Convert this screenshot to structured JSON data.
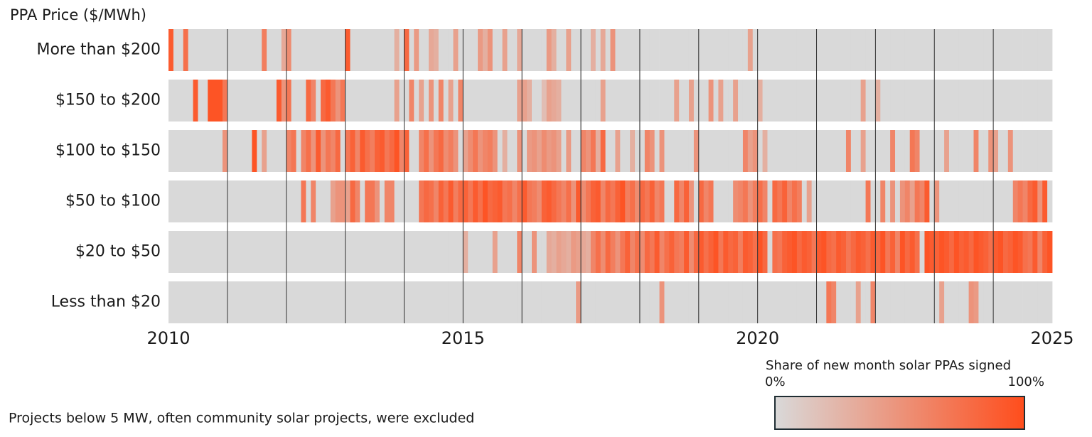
{
  "chart_data": {
    "type": "heatmap",
    "y_axis_title": "PPA Price ($/MWh)",
    "categories": [
      "More than $200",
      "$150 to $200",
      "$100 to $150",
      "$50 to $100",
      "$20 to $50",
      "Less than $20"
    ],
    "xlim": [
      2010,
      2025
    ],
    "xticks": [
      2010,
      2015,
      2020,
      2025
    ],
    "xgrid": [
      2011,
      2012,
      2013,
      2014,
      2015,
      2016,
      2017,
      2018,
      2019,
      2020,
      2021,
      2022,
      2023,
      2024
    ],
    "values": [
      [
        90,
        0,
        0,
        75,
        0,
        0,
        0,
        0,
        0,
        0,
        0,
        0,
        0,
        0,
        0,
        0,
        0,
        0,
        0,
        65,
        0,
        0,
        0,
        35,
        55,
        0,
        0,
        0,
        0,
        0,
        0,
        0,
        0,
        0,
        0,
        0,
        90,
        0,
        0,
        0,
        0,
        0,
        0,
        0,
        0,
        0,
        30,
        0,
        80,
        0,
        45,
        0,
        0,
        35,
        30,
        0,
        0,
        0,
        40,
        0,
        0,
        0,
        0,
        45,
        30,
        50,
        0,
        0,
        40,
        0,
        0,
        35,
        0,
        0,
        0,
        0,
        0,
        45,
        30,
        0,
        0,
        40,
        0,
        0,
        0,
        0,
        30,
        0,
        35,
        0,
        50,
        0,
        0,
        0,
        0,
        0,
        0,
        0,
        0,
        0,
        0,
        0,
        0,
        0,
        0,
        0,
        0,
        0,
        0,
        0,
        0,
        0,
        0,
        0,
        0,
        0,
        0,
        0,
        40,
        0,
        0,
        0,
        0,
        0,
        0,
        0,
        0,
        0,
        0,
        0,
        0,
        0,
        0,
        0,
        0,
        0,
        0,
        0,
        0,
        0,
        0,
        0,
        0,
        0,
        0,
        0,
        0,
        0,
        0,
        0,
        0,
        0,
        0,
        0,
        0,
        0,
        0,
        0,
        0,
        0,
        0,
        0,
        0,
        0,
        0,
        0,
        0,
        0,
        0,
        0,
        0,
        0,
        0,
        0,
        0,
        0,
        0,
        0,
        0,
        0
      ],
      [
        0,
        0,
        0,
        0,
        0,
        90,
        0,
        0,
        95,
        95,
        95,
        70,
        0,
        0,
        0,
        0,
        0,
        0,
        0,
        0,
        0,
        0,
        90,
        50,
        70,
        0,
        0,
        0,
        80,
        60,
        0,
        80,
        90,
        70,
        50,
        70,
        0,
        0,
        0,
        0,
        0,
        0,
        0,
        0,
        0,
        0,
        40,
        0,
        0,
        60,
        0,
        40,
        0,
        50,
        0,
        60,
        0,
        40,
        0,
        60,
        0,
        0,
        0,
        0,
        0,
        0,
        0,
        0,
        0,
        0,
        0,
        40,
        40,
        30,
        0,
        0,
        20,
        40,
        35,
        30,
        0,
        0,
        0,
        0,
        0,
        0,
        0,
        0,
        40,
        0,
        0,
        0,
        0,
        0,
        0,
        0,
        0,
        0,
        0,
        0,
        0,
        0,
        0,
        40,
        0,
        0,
        40,
        0,
        0,
        0,
        50,
        0,
        40,
        0,
        0,
        40,
        0,
        0,
        0,
        0,
        30,
        0,
        0,
        0,
        0,
        0,
        0,
        0,
        0,
        0,
        0,
        0,
        0,
        0,
        0,
        0,
        0,
        0,
        0,
        0,
        0,
        40,
        0,
        0,
        30,
        0,
        0,
        0,
        0,
        0,
        0,
        0,
        0,
        0,
        0,
        0,
        0,
        0,
        0,
        0,
        0,
        0,
        0,
        0,
        0,
        0,
        0,
        0,
        0,
        0,
        0,
        0,
        0,
        0,
        0,
        0,
        0,
        0,
        0,
        0
      ],
      [
        0,
        0,
        0,
        0,
        0,
        0,
        0,
        0,
        0,
        0,
        0,
        50,
        0,
        0,
        0,
        0,
        0,
        95,
        0,
        40,
        0,
        0,
        0,
        0,
        60,
        70,
        0,
        60,
        75,
        50,
        90,
        50,
        70,
        60,
        80,
        0,
        70,
        85,
        60,
        90,
        75,
        65,
        85,
        90,
        70,
        80,
        95,
        60,
        85,
        0,
        0,
        60,
        75,
        50,
        70,
        80,
        55,
        65,
        50,
        0,
        40,
        55,
        70,
        50,
        60,
        65,
        50,
        0,
        30,
        0,
        0,
        50,
        0,
        45,
        50,
        40,
        55,
        45,
        50,
        40,
        0,
        45,
        0,
        0,
        60,
        50,
        70,
        30,
        80,
        0,
        0,
        40,
        0,
        0,
        30,
        0,
        0,
        60,
        50,
        0,
        50,
        0,
        0,
        0,
        0,
        0,
        0,
        50,
        0,
        0,
        0,
        0,
        0,
        0,
        0,
        0,
        0,
        60,
        40,
        50,
        0,
        30,
        0,
        0,
        0,
        0,
        0,
        0,
        0,
        0,
        0,
        0,
        0,
        0,
        0,
        0,
        0,
        0,
        60,
        0,
        0,
        40,
        0,
        0,
        0,
        0,
        0,
        60,
        0,
        0,
        0,
        70,
        60,
        0,
        0,
        0,
        0,
        0,
        40,
        0,
        0,
        0,
        0,
        0,
        60,
        0,
        0,
        50,
        40,
        0,
        0,
        50,
        0,
        0,
        0,
        0,
        0,
        0,
        0,
        0
      ],
      [
        0,
        0,
        0,
        0,
        0,
        0,
        0,
        0,
        0,
        0,
        0,
        0,
        0,
        0,
        0,
        0,
        0,
        0,
        0,
        0,
        0,
        0,
        0,
        0,
        0,
        0,
        0,
        70,
        0,
        60,
        0,
        0,
        0,
        40,
        50,
        50,
        40,
        80,
        60,
        0,
        70,
        70,
        50,
        0,
        60,
        60,
        0,
        0,
        0,
        0,
        0,
        70,
        80,
        75,
        60,
        85,
        70,
        90,
        65,
        80,
        85,
        70,
        90,
        75,
        95,
        80,
        85,
        90,
        70,
        75,
        60,
        75,
        90,
        70,
        65,
        55,
        85,
        90,
        80,
        70,
        60,
        75,
        50,
        90,
        55,
        70,
        85,
        90,
        60,
        80,
        70,
        85,
        95,
        65,
        75,
        55,
        80,
        70,
        85,
        60,
        70,
        0,
        0,
        80,
        60,
        85,
        50,
        0,
        80,
        60,
        70,
        0,
        0,
        0,
        0,
        55,
        60,
        70,
        50,
        65,
        75,
        60,
        0,
        80,
        70,
        85,
        60,
        75,
        65,
        0,
        40,
        0,
        0,
        0,
        0,
        0,
        0,
        0,
        0,
        0,
        0,
        0,
        70,
        0,
        0,
        60,
        0,
        50,
        0,
        50,
        60,
        40,
        70,
        60,
        90,
        0,
        50,
        0,
        0,
        0,
        0,
        0,
        0,
        0,
        0,
        0,
        0,
        0,
        0,
        0,
        0,
        0,
        60,
        70,
        60,
        80,
        90,
        50,
        90,
        0
      ],
      [
        0,
        0,
        0,
        0,
        0,
        0,
        0,
        0,
        0,
        0,
        0,
        0,
        0,
        0,
        0,
        0,
        0,
        0,
        0,
        0,
        0,
        0,
        0,
        0,
        0,
        0,
        0,
        0,
        0,
        0,
        0,
        0,
        0,
        0,
        0,
        0,
        0,
        0,
        0,
        0,
        0,
        0,
        0,
        0,
        0,
        0,
        0,
        0,
        0,
        0,
        0,
        0,
        0,
        0,
        0,
        0,
        0,
        0,
        0,
        0,
        30,
        0,
        0,
        0,
        0,
        0,
        40,
        0,
        0,
        0,
        0,
        60,
        0,
        0,
        50,
        0,
        0,
        35,
        30,
        40,
        35,
        30,
        45,
        40,
        35,
        30,
        60,
        75,
        55,
        80,
        65,
        50,
        70,
        85,
        60,
        75,
        55,
        80,
        70,
        90,
        60,
        75,
        85,
        70,
        65,
        90,
        55,
        80,
        90,
        75,
        85,
        95,
        70,
        90,
        80,
        85,
        65,
        90,
        85,
        75,
        95,
        80,
        0,
        75,
        70,
        85,
        90,
        95,
        80,
        90,
        85,
        70,
        90,
        95,
        80,
        75,
        90,
        85,
        70,
        80,
        90,
        85,
        75,
        90,
        80,
        95,
        70,
        85,
        60,
        95,
        80,
        90,
        75,
        0,
        95,
        90,
        85,
        95,
        90,
        80,
        95,
        85,
        90,
        80,
        95,
        90,
        85,
        75,
        90,
        95,
        80,
        85,
        95,
        90,
        75,
        70,
        90,
        60,
        85,
        95
      ],
      [
        0,
        0,
        0,
        0,
        0,
        0,
        0,
        0,
        0,
        0,
        0,
        0,
        0,
        0,
        0,
        0,
        0,
        0,
        0,
        0,
        0,
        0,
        0,
        0,
        0,
        0,
        0,
        0,
        0,
        0,
        0,
        0,
        0,
        0,
        0,
        0,
        0,
        0,
        0,
        0,
        0,
        0,
        0,
        0,
        0,
        0,
        0,
        0,
        0,
        0,
        0,
        0,
        0,
        0,
        0,
        0,
        0,
        0,
        0,
        0,
        0,
        0,
        0,
        0,
        0,
        0,
        0,
        0,
        0,
        0,
        0,
        0,
        0,
        0,
        0,
        0,
        0,
        0,
        0,
        0,
        0,
        0,
        0,
        45,
        0,
        0,
        0,
        0,
        0,
        0,
        0,
        0,
        0,
        0,
        0,
        0,
        0,
        0,
        0,
        0,
        50,
        0,
        0,
        0,
        0,
        0,
        0,
        0,
        0,
        0,
        0,
        0,
        0,
        0,
        0,
        0,
        0,
        0,
        0,
        0,
        0,
        0,
        0,
        0,
        0,
        0,
        0,
        0,
        0,
        0,
        0,
        0,
        0,
        0,
        70,
        60,
        0,
        0,
        0,
        0,
        40,
        0,
        0,
        60,
        0,
        0,
        0,
        0,
        0,
        0,
        0,
        0,
        0,
        0,
        0,
        0,
        0,
        40,
        0,
        0,
        0,
        0,
        0,
        50,
        45,
        0,
        0,
        0,
        0,
        0,
        0,
        0,
        0,
        0,
        0,
        0,
        0,
        0,
        0,
        0
      ]
    ],
    "colorbar": {
      "title": "Share of new month solar PPAs signed",
      "lim": [
        0,
        100
      ],
      "ticks": [
        {
          "value": 0,
          "label": "0%"
        },
        {
          "value": 100,
          "label": "100%"
        }
      ],
      "colors": [
        "#d9d9d9",
        "#ff4d1c"
      ]
    },
    "footnote": "Projects below 5 MW, often community solar projects,  were excluded"
  }
}
